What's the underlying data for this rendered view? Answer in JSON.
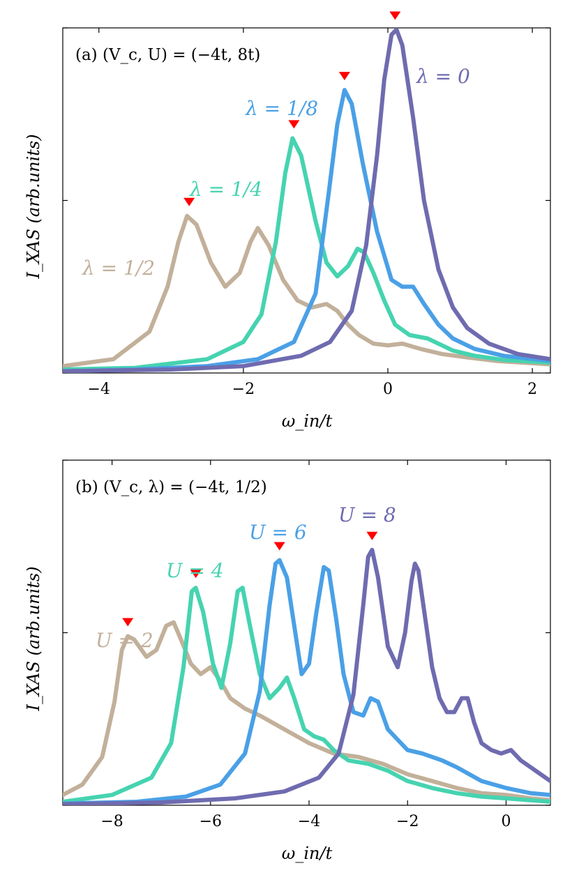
{
  "chart_data": [
    {
      "type": "line",
      "panel_label": "(a) (V_c, U) = (−4t, 8t)",
      "xlabel": "ω_in/t",
      "ylabel": "I_XAS (arb.units)",
      "xlim": [
        -4.5,
        2.25
      ],
      "ylim": [
        0,
        1.0
      ],
      "xticks": [
        -4,
        -2,
        0,
        2
      ],
      "xtick_labels": [
        "−4",
        "−2",
        "0",
        "2"
      ],
      "series": [
        {
          "name": "λ = 1/2",
          "color": "#c2b09a",
          "x": [
            -4.5,
            -3.8,
            -3.3,
            -3.05,
            -2.9,
            -2.78,
            -2.65,
            -2.45,
            -2.25,
            -2.05,
            -1.9,
            -1.8,
            -1.65,
            -1.45,
            -1.25,
            -1.05,
            -0.85,
            -0.7,
            -0.55,
            -0.4,
            -0.2,
            0.0,
            0.2,
            0.45,
            0.75,
            1.1,
            1.5,
            2.25
          ],
          "y": [
            0.02,
            0.04,
            0.12,
            0.25,
            0.38,
            0.455,
            0.43,
            0.32,
            0.25,
            0.29,
            0.38,
            0.42,
            0.37,
            0.27,
            0.21,
            0.19,
            0.2,
            0.18,
            0.14,
            0.11,
            0.085,
            0.08,
            0.085,
            0.07,
            0.055,
            0.045,
            0.035,
            0.025
          ]
        },
        {
          "name": "λ = 1/4",
          "color": "#46d3b0",
          "x": [
            -4.5,
            -3.5,
            -2.5,
            -2.0,
            -1.75,
            -1.55,
            -1.42,
            -1.32,
            -1.2,
            -1.0,
            -0.85,
            -0.7,
            -0.55,
            -0.42,
            -0.33,
            -0.2,
            -0.05,
            0.1,
            0.3,
            0.55,
            0.7,
            0.9,
            1.2,
            1.6,
            2.25
          ],
          "y": [
            0.01,
            0.015,
            0.04,
            0.09,
            0.17,
            0.38,
            0.58,
            0.68,
            0.63,
            0.44,
            0.32,
            0.28,
            0.31,
            0.36,
            0.35,
            0.29,
            0.21,
            0.14,
            0.11,
            0.1,
            0.085,
            0.065,
            0.05,
            0.038,
            0.03
          ]
        },
        {
          "name": "λ = 1/8",
          "color": "#4aa0e6",
          "x": [
            -4.5,
            -3.5,
            -2.5,
            -1.8,
            -1.3,
            -1.0,
            -0.82,
            -0.7,
            -0.6,
            -0.5,
            -0.35,
            -0.15,
            0.05,
            0.2,
            0.35,
            0.5,
            0.7,
            0.9,
            1.2,
            1.6,
            2.25
          ],
          "y": [
            0.005,
            0.01,
            0.02,
            0.04,
            0.09,
            0.23,
            0.52,
            0.72,
            0.82,
            0.78,
            0.61,
            0.41,
            0.27,
            0.25,
            0.25,
            0.2,
            0.14,
            0.1,
            0.07,
            0.05,
            0.035
          ]
        },
        {
          "name": "λ = 0",
          "color": "#6f6bb0",
          "x": [
            -4.5,
            -3.0,
            -2.0,
            -1.2,
            -0.8,
            -0.5,
            -0.3,
            -0.15,
            -0.05,
            0.05,
            0.12,
            0.2,
            0.35,
            0.5,
            0.7,
            0.9,
            1.1,
            1.4,
            1.8,
            2.25
          ],
          "y": [
            0.005,
            0.01,
            0.02,
            0.05,
            0.09,
            0.18,
            0.37,
            0.63,
            0.85,
            0.98,
            0.995,
            0.95,
            0.74,
            0.5,
            0.3,
            0.19,
            0.13,
            0.085,
            0.055,
            0.04
          ]
        }
      ],
      "curve_labels": [
        "λ = 1/2",
        "λ = 1/4",
        "λ = 1/8",
        "λ = 0"
      ],
      "markers_x": [
        -2.75,
        -1.3,
        -0.6,
        0.1
      ]
    },
    {
      "type": "line",
      "panel_label": "(b) (V_c, λ) = (−4t, 1/2)",
      "xlabel": "ω_in/t",
      "ylabel": "I_XAS (arb.units)",
      "xlim": [
        -9.0,
        0.9
      ],
      "ylim": [
        0,
        1.0
      ],
      "xticks": [
        -8,
        -6,
        -4,
        -2,
        0
      ],
      "xtick_labels": [
        "−8",
        "−6",
        "−4",
        "−2",
        "0"
      ],
      "series": [
        {
          "name": "U = 2",
          "color": "#c2b09a",
          "x": [
            -9.0,
            -8.6,
            -8.2,
            -7.95,
            -7.8,
            -7.68,
            -7.55,
            -7.3,
            -7.1,
            -6.9,
            -6.75,
            -6.6,
            -6.4,
            -6.2,
            -6.0,
            -5.8,
            -5.6,
            -5.3,
            -5.0,
            -4.5,
            -4.0,
            -3.5,
            -3.0,
            -2.5,
            -2.0,
            -1.5,
            -1.0,
            -0.5,
            0.0,
            0.5,
            0.9
          ],
          "y": [
            0.03,
            0.06,
            0.14,
            0.3,
            0.45,
            0.49,
            0.48,
            0.43,
            0.45,
            0.52,
            0.53,
            0.48,
            0.41,
            0.38,
            0.4,
            0.36,
            0.31,
            0.28,
            0.26,
            0.22,
            0.18,
            0.15,
            0.14,
            0.12,
            0.09,
            0.07,
            0.05,
            0.035,
            0.03,
            0.02,
            0.015
          ]
        },
        {
          "name": "U = 4",
          "color": "#46d3b0",
          "x": [
            -9.0,
            -8.0,
            -7.2,
            -6.8,
            -6.55,
            -6.38,
            -6.3,
            -6.15,
            -5.95,
            -5.78,
            -5.6,
            -5.45,
            -5.35,
            -5.2,
            -5.0,
            -4.8,
            -4.6,
            -4.45,
            -4.3,
            -4.1,
            -3.9,
            -3.7,
            -3.5,
            -3.2,
            -2.8,
            -2.4,
            -2.0,
            -1.5,
            -1.0,
            -0.5,
            0.0,
            0.9
          ],
          "y": [
            0.01,
            0.03,
            0.08,
            0.18,
            0.4,
            0.62,
            0.63,
            0.56,
            0.41,
            0.34,
            0.47,
            0.62,
            0.63,
            0.52,
            0.38,
            0.31,
            0.34,
            0.37,
            0.31,
            0.22,
            0.2,
            0.19,
            0.16,
            0.13,
            0.12,
            0.1,
            0.07,
            0.05,
            0.035,
            0.025,
            0.02,
            0.01
          ]
        },
        {
          "name": "U = 6",
          "color": "#4aa0e6",
          "x": [
            -9.0,
            -7.5,
            -6.5,
            -5.8,
            -5.3,
            -5.0,
            -4.8,
            -4.68,
            -4.6,
            -4.45,
            -4.3,
            -4.15,
            -4.0,
            -3.85,
            -3.7,
            -3.6,
            -3.45,
            -3.3,
            -3.1,
            -2.9,
            -2.75,
            -2.6,
            -2.4,
            -2.2,
            -2.0,
            -1.7,
            -1.3,
            -1.0,
            -0.5,
            0.0,
            0.5,
            0.9
          ],
          "y": [
            0.005,
            0.01,
            0.025,
            0.06,
            0.15,
            0.33,
            0.58,
            0.7,
            0.71,
            0.66,
            0.52,
            0.38,
            0.41,
            0.56,
            0.69,
            0.68,
            0.54,
            0.38,
            0.27,
            0.26,
            0.31,
            0.3,
            0.22,
            0.19,
            0.16,
            0.15,
            0.13,
            0.11,
            0.07,
            0.05,
            0.035,
            0.03
          ]
        },
        {
          "name": "U = 8",
          "color": "#6f6bb0",
          "x": [
            -9.0,
            -7.0,
            -5.5,
            -4.5,
            -3.8,
            -3.4,
            -3.1,
            -2.9,
            -2.8,
            -2.72,
            -2.6,
            -2.4,
            -2.2,
            -2.05,
            -1.92,
            -1.85,
            -1.78,
            -1.65,
            -1.5,
            -1.35,
            -1.2,
            -1.05,
            -0.9,
            -0.78,
            -0.65,
            -0.5,
            -0.3,
            -0.1,
            0.1,
            0.3,
            0.6,
            0.9
          ],
          "y": [
            0.003,
            0.008,
            0.02,
            0.04,
            0.08,
            0.15,
            0.32,
            0.58,
            0.72,
            0.74,
            0.66,
            0.46,
            0.4,
            0.5,
            0.65,
            0.7,
            0.68,
            0.55,
            0.4,
            0.31,
            0.27,
            0.27,
            0.31,
            0.31,
            0.24,
            0.18,
            0.16,
            0.15,
            0.16,
            0.13,
            0.1,
            0.07
          ]
        }
      ],
      "curve_labels": [
        "U = 2",
        "U = 4",
        "U = 6",
        "U = 8"
      ],
      "markers_x": [
        -7.68,
        -6.3,
        -4.6,
        -2.72
      ]
    }
  ]
}
